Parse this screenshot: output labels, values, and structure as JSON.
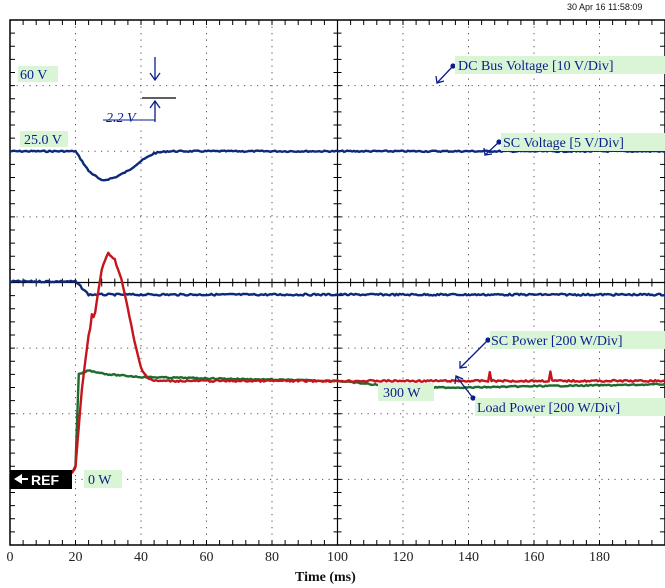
{
  "timestamp": "30 Apr 16  11:58:09",
  "chart_data": {
    "type": "line",
    "xlabel": "Time (ms)",
    "xlim": [
      0,
      200
    ],
    "x_ticks": [
      "0",
      "20",
      "40",
      "60",
      "80",
      "100",
      "120",
      "140",
      "160",
      "180"
    ],
    "grid": true,
    "divisions": {
      "horizontal": 10,
      "vertical": 8
    },
    "upper_panel": {
      "series": [
        {
          "name": "DC Bus Voltage [10 V/Div]",
          "color": "#0d2a7a",
          "level_label": "60 V",
          "x": [
            0,
            20,
            24,
            28,
            32,
            36,
            40,
            44,
            48,
            200
          ],
          "y_div": [
            2.0,
            2.0,
            2.3,
            2.45,
            2.4,
            2.3,
            2.15,
            2.03,
            2.0,
            2.0
          ]
        },
        {
          "name": "SC Voltage [5 V/Div]",
          "color": "#0d2a7a",
          "level_label": "25.0 V",
          "x": [
            0,
            20,
            24,
            200
          ],
          "y_div": [
            4.0,
            4.0,
            4.2,
            4.2
          ]
        }
      ],
      "annotation": {
        "text": "2.2 V"
      }
    },
    "lower_panel": {
      "series": [
        {
          "name": "SC Power [200 W/Div]",
          "color": "#c4161c",
          "x": [
            0,
            19,
            20,
            22,
            24,
            26,
            28,
            30,
            32,
            34,
            36,
            38,
            40,
            42,
            44,
            200
          ],
          "y_div": [
            -1.5,
            -1.5,
            -1.4,
            -0.2,
            0.6,
            0.95,
            1.6,
            1.85,
            1.75,
            1.45,
            1.0,
            0.5,
            0.1,
            -0.05,
            -0.1,
            -0.1
          ]
        },
        {
          "name": "Load Power [200 W/Div]",
          "color": "#1e6b2e",
          "x": [
            0,
            19,
            20,
            21,
            24,
            30,
            40,
            50,
            100,
            120,
            140,
            160,
            190,
            200
          ],
          "y_div": [
            -1.5,
            -1.5,
            -1.4,
            0.0,
            0.06,
            0.0,
            -0.04,
            -0.05,
            -0.1,
            -0.2,
            -0.2,
            -0.18,
            -0.16,
            -0.15
          ]
        }
      ],
      "level_labels": [
        "300 W",
        "0 W"
      ],
      "reference_marker": "REF"
    }
  }
}
